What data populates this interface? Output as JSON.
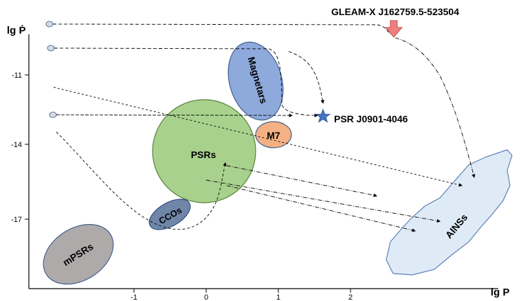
{
  "axes": {
    "y_label": "lg Ṗ",
    "x_label": "lg P",
    "y_ticks": [
      "-11",
      "-14",
      "-17"
    ],
    "x_ticks": [
      "-1",
      "0",
      "1",
      "2"
    ]
  },
  "regions": {
    "magnetars": "Magnetars",
    "m7": "M7",
    "psrs": "PSRs",
    "ccos": "CCOs",
    "mpsrs": "mPSRs",
    "ainss": "AINSs"
  },
  "annotations": {
    "gleam": "GLEAM-X J162759.5-523504",
    "psr_star": "PSR J0901-4046"
  },
  "colors": {
    "magnetars": "#8ea9db",
    "m7": "#f4b183",
    "psrs": "#a9d18e",
    "ccos": "#6f86a8",
    "mpsrs": "#aeaaaa",
    "ainss": "#deebf7",
    "star": "#4472c4",
    "gleam_arrow": "#f08080"
  }
}
